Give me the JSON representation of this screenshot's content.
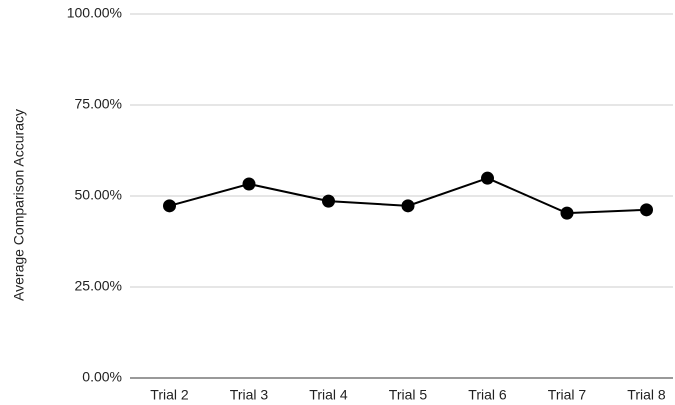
{
  "chart_data": {
    "type": "line",
    "y_label": "Average Comparison Accuracy",
    "categories": [
      "Trial 2",
      "Trial 3",
      "Trial 4",
      "Trial 5",
      "Trial 6",
      "Trial 7",
      "Trial 8"
    ],
    "series": [
      {
        "name": "Average Comparison Accuracy",
        "color": "#000000",
        "values": [
          47.3,
          53.3,
          48.6,
          47.3,
          54.9,
          45.3,
          46.2
        ]
      }
    ],
    "ylim": [
      0,
      100
    ],
    "yticks": [
      {
        "value": 0,
        "label": "0.00%"
      },
      {
        "value": 25,
        "label": "25.00%"
      },
      {
        "value": 50,
        "label": "50.00%"
      },
      {
        "value": 75,
        "label": "75.00%"
      },
      {
        "value": 100,
        "label": "100.00%"
      }
    ],
    "grid": true
  }
}
